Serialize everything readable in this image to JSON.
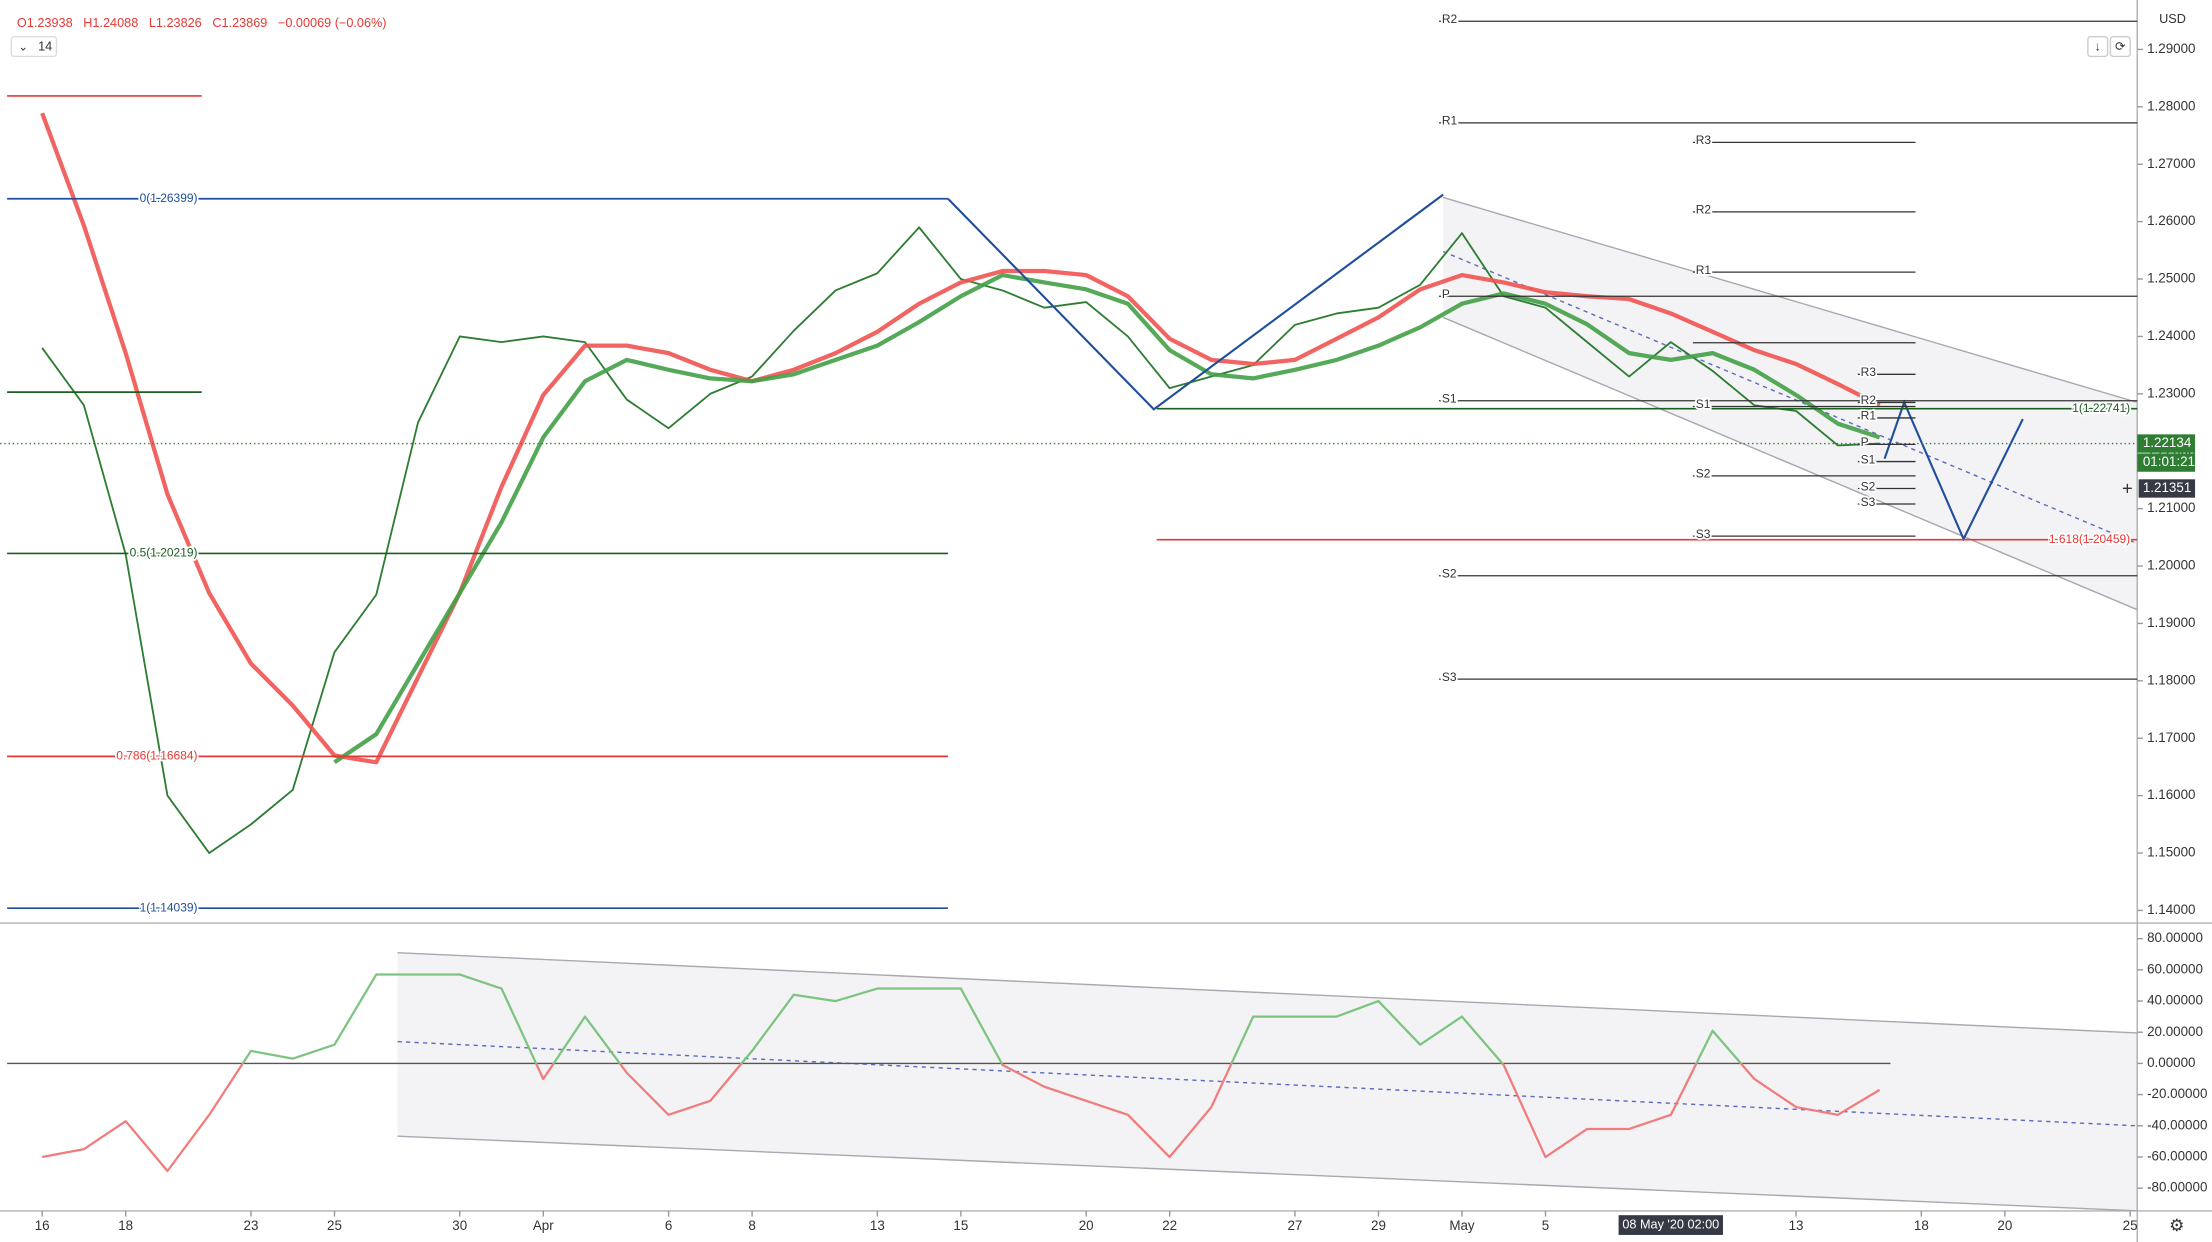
{
  "header": {
    "ohlc": [
      "O1.23938",
      "H1.24088",
      "L1.23826",
      "C1.23869",
      "−0.00069 (−0.06%)"
    ],
    "indicator_length": "14",
    "currency": "USD"
  },
  "chart_data": [
    {
      "type": "line",
      "x": [
        0,
        1,
        2,
        3,
        4,
        5,
        6,
        7,
        8,
        9,
        10,
        11,
        12,
        13,
        14,
        15,
        16,
        17,
        18,
        19,
        20,
        21,
        22,
        23,
        24,
        25,
        26,
        27,
        28,
        29,
        30,
        31,
        32,
        33,
        34,
        35,
        36,
        37,
        38,
        39,
        40,
        41,
        42,
        43,
        44
      ],
      "xlim": [
        -1.01,
        50.17
      ],
      "ylim": [
        1.13805,
        1.29861
      ],
      "yticks": [
        {
          "value": 1.29,
          "label": "1.29000"
        },
        {
          "value": 1.28,
          "label": "1.28000"
        },
        {
          "value": 1.27,
          "label": "1.27000"
        },
        {
          "value": 1.26,
          "label": "1.26000"
        },
        {
          "value": 1.25,
          "label": "1.25000"
        },
        {
          "value": 1.24,
          "label": "1.24000"
        },
        {
          "value": 1.23,
          "label": "1.23000"
        },
        {
          "value": 1.22,
          "label": "1.22000"
        },
        {
          "value": 1.21,
          "label": "1.21000"
        },
        {
          "value": 1.2,
          "label": "1.20000"
        },
        {
          "value": 1.19,
          "label": "1.19000"
        },
        {
          "value": 1.18,
          "label": "1.18000"
        },
        {
          "value": 1.17,
          "label": "1.17000"
        },
        {
          "value": 1.16,
          "label": "1.16000"
        },
        {
          "value": 1.15,
          "label": "1.15000"
        },
        {
          "value": 1.14,
          "label": "1.14000"
        }
      ],
      "grid": false,
      "series": [
        {
          "color": "#2e7d32",
          "values": [
            1.238,
            1.228,
            1.202,
            1.16,
            1.15,
            1.155,
            1.161,
            1.185,
            1.195,
            1.225,
            1.24,
            1.239,
            1.24,
            1.239,
            1.229,
            1.224,
            1.23,
            1.233,
            1.241,
            1.248,
            1.251,
            1.259,
            1.25,
            1.248,
            1.245,
            1.246,
            1.24,
            1.231,
            1.233,
            1.235,
            1.242,
            1.244,
            1.245,
            1.249,
            1.258,
            1.247,
            1.245,
            1.239,
            1.233,
            1.239,
            1.234,
            1.228,
            1.227,
            1.221,
            1.22134
          ]
        },
        {
          "color": "#ef5350",
          "values": [
            1.2789,
            1.2593,
            1.2371,
            1.2125,
            1.1953,
            1.183,
            1.1757,
            1.167,
            1.1658,
            1.1806,
            1.1953,
            1.2138,
            1.2298,
            1.2384,
            1.2384,
            1.2371,
            1.2342,
            1.2322,
            1.2342,
            1.2371,
            1.2408,
            1.2457,
            1.2494,
            1.2514,
            1.2514,
            1.2507,
            1.247,
            1.2396,
            1.2359,
            1.2352,
            1.2359,
            1.2396,
            1.2433,
            1.2482,
            1.2507,
            1.2494,
            1.2477,
            1.247,
            1.2465,
            1.244,
            1.2408,
            1.2376,
            1.2352,
            1.2317,
            1.228
          ]
        },
        {
          "color": "#43a047",
          "values": [
            null,
            null,
            null,
            null,
            null,
            null,
            null,
            1.1658,
            1.1707,
            1.183,
            1.1953,
            1.2076,
            1.2224,
            1.2322,
            1.2359,
            1.2342,
            1.2327,
            1.2322,
            1.2334,
            1.2359,
            1.2384,
            1.2425,
            1.247,
            1.2507,
            1.2494,
            1.2482,
            1.2457,
            1.2376,
            1.2334,
            1.2327,
            1.2342,
            1.2359,
            1.2384,
            1.2416,
            1.2457,
            1.2475,
            1.2457,
            1.2421,
            1.2371,
            1.2359,
            1.2371,
            1.2342,
            1.2298,
            1.2248,
            1.2224
          ]
        }
      ],
      "countdown": "01:01:21",
      "crosshair": {
        "x": 39,
        "price": 1.21351,
        "time": "08 May '20 02:00"
      },
      "levels": [
        {
          "from": -0.84,
          "to": 21.69,
          "lines": [
            {
              "value": 1.26399,
              "label": "0(1.26399)",
              "color": "#1f4e9c"
            },
            {
              "value": 1.20219,
              "label": "0.5(1.20219)",
              "color": "#1b5e20"
            },
            {
              "value": 1.16684,
              "label": "0.786(1.16684)",
              "color": "#e53935"
            },
            {
              "value": 1.14039,
              "label": "1(1.14039)",
              "color": "#1f4e9c"
            }
          ]
        },
        {
          "from": -0.84,
          "to": 3.82,
          "lines": [
            {
              "value": 1.2819,
              "color": "#e53935"
            },
            {
              "value": 1.2303,
              "color": "#1b5e20"
            }
          ]
        },
        {
          "from": 26.69,
          "to": 50.17,
          "lines": [
            {
              "value": 1.22741,
              "label": "1(1.22741)",
              "color": "#1b5e20"
            },
            {
              "value": 1.20459,
              "label": "1.618(1.20459)",
              "color": "#e53935"
            }
          ]
        },
        {
          "from": 33.45,
          "to": 50.17,
          "color": "#333333",
          "lines": [
            {
              "value": 1.2949,
              "label": "R2"
            },
            {
              "value": 1.2772,
              "label": "R1"
            },
            {
              "value": 1.247,
              "label": "P"
            },
            {
              "value": 1.2288,
              "label": "S1"
            },
            {
              "value": 1.1983,
              "label": "S2"
            },
            {
              "value": 1.1803,
              "label": "S3"
            }
          ]
        },
        {
          "from": 39.53,
          "to": 44.86,
          "color": "#333333",
          "lines": [
            {
              "value": 1.2738,
              "label": "R3"
            },
            {
              "value": 1.2617,
              "label": "R2"
            },
            {
              "value": 1.2512,
              "label": "R1"
            },
            {
              "value": 1.2389
            },
            {
              "value": 1.2278,
              "label": "S1"
            },
            {
              "value": 1.2157,
              "label": "S2"
            },
            {
              "value": 1.2052,
              "label": "S3"
            }
          ]
        },
        {
          "from": 43.48,
          "to": 44.86,
          "color": "#333333",
          "lines": [
            {
              "value": 1.2334,
              "label": "R3"
            },
            {
              "value": 1.2285,
              "label": "R2"
            },
            {
              "value": 1.2258,
              "label": "R1"
            },
            {
              "value": 1.2212,
              "label": "P"
            },
            {
              "value": 1.2182,
              "label": "S1"
            },
            {
              "value": 1.2135,
              "label": "S2"
            },
            {
              "value": 1.2108,
              "label": "S3"
            }
          ]
        }
      ],
      "drawings": [
        {
          "color": "#1f4e9c",
          "x": [
            21.69,
            26.62,
            33.55
          ],
          "values": [
            1.264,
            1.2273,
            1.2647
          ]
        },
        {
          "color": "#1f4e9c",
          "x": [
            44.12,
            44.59,
            46.01,
            47.43
          ],
          "values": [
            1.2187,
            1.2285,
            1.2047,
            1.2256
          ]
        }
      ],
      "channel": {
        "x": [
          33.55,
          50.17
        ],
        "upper": [
          1.2642,
          1.2285
        ],
        "lower": [
          1.2433,
          1.1924
        ],
        "midline": [
          1.2548,
          1.2039
        ]
      }
    },
    {
      "type": "line",
      "x": [
        0,
        1,
        2,
        3,
        4,
        5,
        6,
        7,
        8,
        9,
        10,
        11,
        12,
        13,
        14,
        15,
        16,
        17,
        18,
        19,
        20,
        21,
        22,
        23,
        24,
        25,
        26,
        27,
        28,
        29,
        30,
        31,
        32,
        33,
        34,
        35,
        36,
        37,
        38,
        39,
        40,
        41,
        42,
        43,
        44
      ],
      "xlim": [
        -1.01,
        50.17
      ],
      "xticks": [
        {
          "value": 0,
          "label": "16"
        },
        {
          "value": 2,
          "label": "18"
        },
        {
          "value": 5,
          "label": "23"
        },
        {
          "value": 7,
          "label": "25"
        },
        {
          "value": 10,
          "label": "30"
        },
        {
          "value": 12,
          "label": "Apr"
        },
        {
          "value": 15,
          "label": "6"
        },
        {
          "value": 17,
          "label": "8"
        },
        {
          "value": 20,
          "label": "13"
        },
        {
          "value": 22,
          "label": "15"
        },
        {
          "value": 25,
          "label": "20"
        },
        {
          "value": 27,
          "label": "22"
        },
        {
          "value": 30,
          "label": "27"
        },
        {
          "value": 32,
          "label": "29"
        },
        {
          "value": 34,
          "label": "May"
        },
        {
          "value": 36,
          "label": "5"
        },
        {
          "value": 42,
          "label": "13"
        },
        {
          "value": 45,
          "label": "18"
        },
        {
          "value": 47,
          "label": "20"
        },
        {
          "value": 50,
          "label": "25"
        }
      ],
      "ylim": [
        -94.6,
        88.2
      ],
      "yticks": [
        {
          "value": 80,
          "label": "80.00000"
        },
        {
          "value": 60,
          "label": "60.00000"
        },
        {
          "value": 40,
          "label": "40.00000"
        },
        {
          "value": 20,
          "label": "20.00000"
        },
        {
          "value": 0,
          "label": "0.00000"
        },
        {
          "value": -20,
          "label": "-20.00000"
        },
        {
          "value": -40,
          "label": "-40.00000"
        },
        {
          "value": -60,
          "label": "-60.00000"
        },
        {
          "value": -80,
          "label": "-80.00000"
        }
      ],
      "grid": false,
      "series": [
        {
          "color": "#7cc47f",
          "negative_color": "#f07c7c",
          "values": [
            -60,
            -55,
            -37,
            -69,
            -33,
            8,
            3,
            12,
            57,
            57,
            57,
            48,
            -10,
            30,
            -6,
            -33,
            -24,
            8,
            44,
            40,
            48,
            48,
            48,
            -1,
            -15,
            -24,
            -33,
            -60,
            -28,
            30,
            30,
            30,
            40,
            12,
            30,
            -1,
            -60,
            -42,
            -42,
            -33,
            21,
            -10,
            -28,
            -33,
            -17
          ]
        }
      ],
      "zero_line": {
        "value": 0,
        "from": -0.84,
        "to": 44.26
      },
      "channel": {
        "x": [
          8.51,
          50.17
        ],
        "upper": [
          71,
          19.5
        ],
        "lower": [
          -46.6,
          -94.5
        ],
        "midline": [
          14,
          -40
        ]
      }
    }
  ]
}
